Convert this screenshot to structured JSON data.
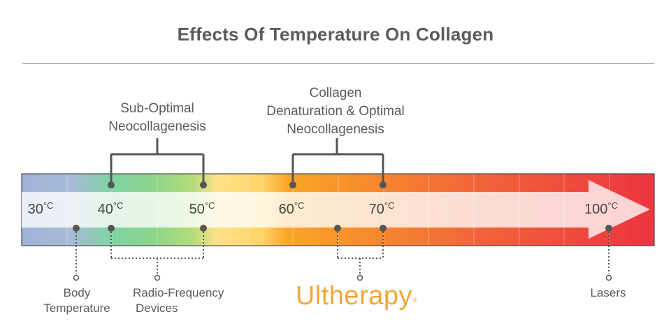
{
  "title": "Effects Of Temperature On Collagen",
  "brackets": {
    "sub_optimal": [
      "Sub-Optimal",
      "Neocollagenesis"
    ],
    "optimal": [
      "Collagen",
      "Denaturation & Optimal",
      "Neocollagenesis"
    ]
  },
  "temperatures": [
    {
      "value": "30",
      "unit": "°C"
    },
    {
      "value": "40",
      "unit": "°C"
    },
    {
      "value": "50",
      "unit": "°C"
    },
    {
      "value": "60",
      "unit": "°C"
    },
    {
      "value": "70",
      "unit": "°C"
    },
    {
      "value": "100",
      "unit": "°C"
    }
  ],
  "bottom_labels": {
    "body": [
      "Body",
      "Temperature"
    ],
    "rf": [
      "Radio-Frequency",
      "Devices"
    ],
    "brand": "Ultherapy",
    "brand_mark": "®",
    "lasers": "Lasers"
  },
  "colors": {
    "title": "#5b5b5b",
    "brand": "#f3a63a",
    "marker": "#555555"
  }
}
